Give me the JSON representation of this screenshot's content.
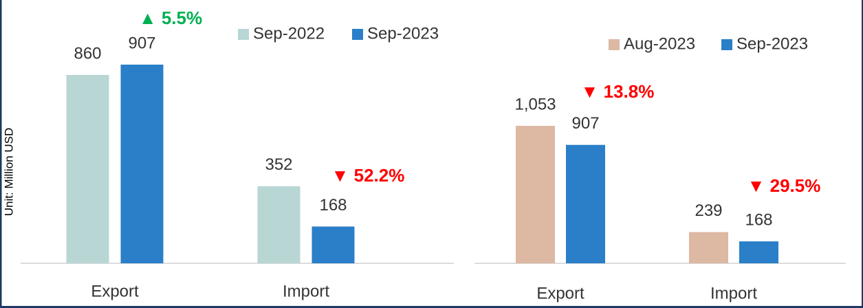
{
  "chart_data": [
    {
      "type": "bar",
      "y_label": "Unit: Million USD",
      "categories": [
        "Export",
        "Import"
      ],
      "series": [
        {
          "name": "Sep-2022",
          "color": "#b8d6d4",
          "values": [
            860,
            352
          ]
        },
        {
          "name": "Sep-2023",
          "color": "#2a7fc8",
          "values": [
            907,
            168
          ]
        }
      ],
      "annotations": [
        {
          "text": "▲ 5.5%",
          "color": "#00b050"
        },
        {
          "text": "▼ 52.2%",
          "color": "#ff0000"
        }
      ]
    },
    {
      "type": "bar",
      "categories": [
        "Export",
        "Import"
      ],
      "series": [
        {
          "name": "Aug-2023",
          "color": "#ddb8a3",
          "values": [
            1053,
            239
          ],
          "value_labels": [
            "1,053",
            "239"
          ]
        },
        {
          "name": "Sep-2023",
          "color": "#2a7fc8",
          "values": [
            907,
            168
          ]
        }
      ],
      "annotations": [
        {
          "text": "▼ 13.8%",
          "color": "#ff0000"
        },
        {
          "text": "▼ 29.5%",
          "color": "#ff0000"
        }
      ]
    }
  ]
}
